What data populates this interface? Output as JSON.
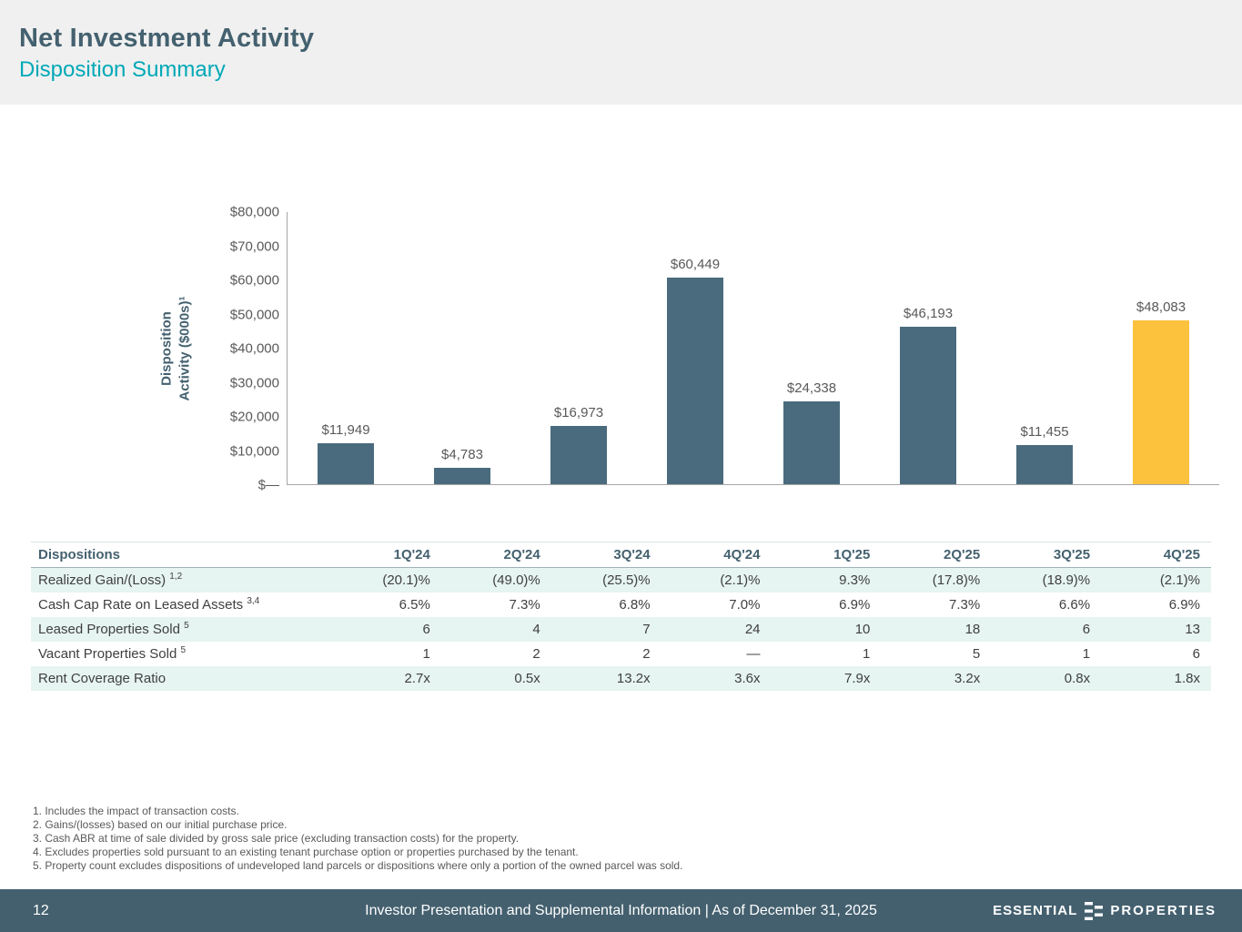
{
  "header": {
    "title": "Net Investment Activity",
    "subtitle": "Disposition Summary"
  },
  "chart_data": {
    "type": "bar",
    "categories": [
      "1Q'24",
      "2Q'24",
      "3Q'24",
      "4Q'24",
      "1Q'25",
      "2Q'25",
      "3Q'25",
      "4Q'25"
    ],
    "values": [
      11949,
      4783,
      16973,
      60449,
      24338,
      46193,
      11455,
      48083
    ],
    "value_labels": [
      "$11,949",
      "$4,783",
      "$16,973",
      "$60,449",
      "$24,338",
      "$46,193",
      "$11,455",
      "$48,083"
    ],
    "title": "",
    "xlabel": "",
    "ylabel": "Disposition\nActivity ($000s)¹",
    "ylim": [
      0,
      80000
    ],
    "ytick_labels_top_to_bottom": [
      "$80,000",
      "$70,000",
      "$60,000",
      "$50,000",
      "$40,000",
      "$30,000",
      "$20,000",
      "$10,000",
      "$—"
    ],
    "grid": false,
    "legend": "none",
    "bar_color": "#4A6B7D",
    "highlight_color": "#FCC13D",
    "highlight_index": 7
  },
  "table": {
    "header": [
      "Dispositions",
      "1Q'24",
      "2Q'24",
      "3Q'24",
      "4Q'24",
      "1Q'25",
      "2Q'25",
      "3Q'25",
      "4Q'25"
    ],
    "rows": [
      {
        "label": "Realized Gain/(Loss)",
        "sup": "1,2",
        "values": [
          "(20.1)%",
          "(49.0)%",
          "(25.5)%",
          "(2.1)%",
          "9.3%",
          "(17.8)%",
          "(18.9)%",
          "(2.1)%"
        ]
      },
      {
        "label": "Cash Cap Rate on Leased Assets",
        "sup": "3,4",
        "values": [
          "6.5%",
          "7.3%",
          "6.8%",
          "7.0%",
          "6.9%",
          "7.3%",
          "6.6%",
          "6.9%"
        ]
      },
      {
        "label": "Leased Properties Sold",
        "sup": "5",
        "values": [
          "6",
          "4",
          "7",
          "24",
          "10",
          "18",
          "6",
          "13"
        ]
      },
      {
        "label": "Vacant Properties Sold",
        "sup": "5",
        "values": [
          "1",
          "2",
          "2",
          "—",
          "1",
          "5",
          "1",
          "6"
        ]
      },
      {
        "label": "Rent Coverage Ratio",
        "sup": "",
        "values": [
          "2.7x",
          "0.5x",
          "13.2x",
          "3.6x",
          "7.9x",
          "3.2x",
          "0.8x",
          "1.8x"
        ]
      }
    ]
  },
  "footnotes": [
    "1. Includes the impact of transaction costs.",
    "2. Gains/(losses) based on our initial purchase price.",
    "3. Cash ABR at time of sale divided by gross sale price (excluding transaction costs) for the property.",
    "4. Excludes properties sold pursuant to an existing tenant purchase option or properties purchased by the tenant.",
    "5. Property count excludes dispositions of undeveloped land parcels or dispositions where only a portion of the owned parcel was sold."
  ],
  "footer": {
    "page_number": "12",
    "center_text": "Investor Presentation and Supplemental Information |  As of December 31, 2025",
    "logo_left": "ESSENTIAL",
    "logo_right": "PROPERTIES"
  },
  "colors": {
    "accent_teal": "#00A9B7",
    "slate": "#44616F",
    "bar": "#4A6B7D",
    "highlight": "#FCC13D",
    "stripe": "#E6F4F2"
  }
}
